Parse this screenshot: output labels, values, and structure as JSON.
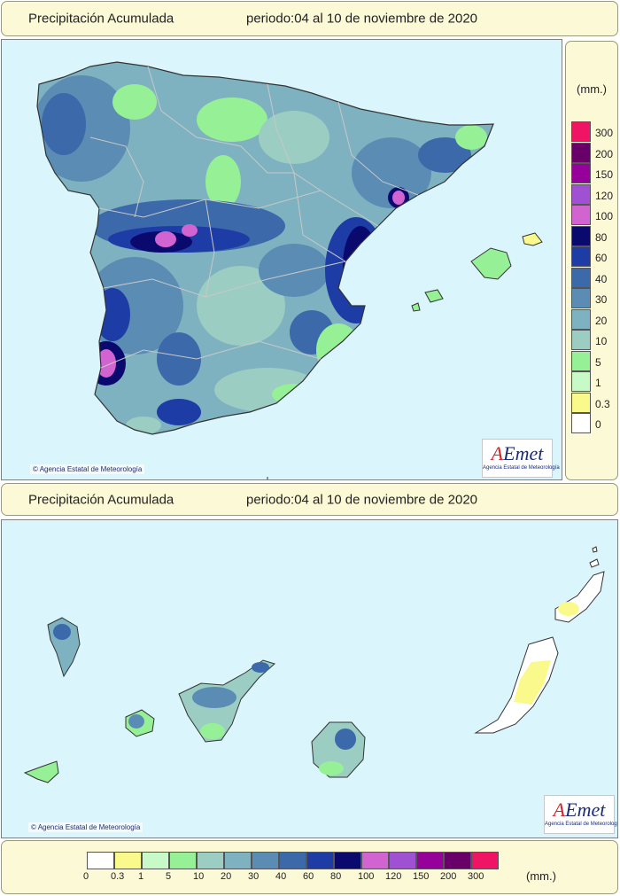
{
  "top_title": {
    "left": "Precipitación Acumulada",
    "right": "periodo:04 al 10 de noviembre de 2020"
  },
  "mid_title": {
    "left": "Precipitación Acumulada",
    "right": "periodo:04 al 10 de noviembre de 2020"
  },
  "credit": "Agencia Estatal de Meteorología",
  "logo": {
    "word_a": "A",
    "word_rest": "Emet",
    "subtitle": "Agencia Estatal de Meteorología"
  },
  "legend": {
    "unit": "(mm.)",
    "classes": [
      {
        "label": "0",
        "color": "#ffffff"
      },
      {
        "label": "0.3",
        "color": "#fafa8c"
      },
      {
        "label": "1",
        "color": "#c8fac8"
      },
      {
        "label": "5",
        "color": "#96f096"
      },
      {
        "label": "10",
        "color": "#9bcdc3"
      },
      {
        "label": "20",
        "color": "#7fb2c0"
      },
      {
        "label": "30",
        "color": "#5b8cb4"
      },
      {
        "label": "40",
        "color": "#3c69aa"
      },
      {
        "label": "60",
        "color": "#1e3ca5"
      },
      {
        "label": "80",
        "color": "#0a0a6e"
      },
      {
        "label": "100",
        "color": "#d264d2"
      },
      {
        "label": "120",
        "color": "#a050d2"
      },
      {
        "label": "150",
        "color": "#96009b"
      },
      {
        "label": "200",
        "color": "#690069"
      },
      {
        "label": "300",
        "color": "#f01464"
      }
    ]
  }
}
